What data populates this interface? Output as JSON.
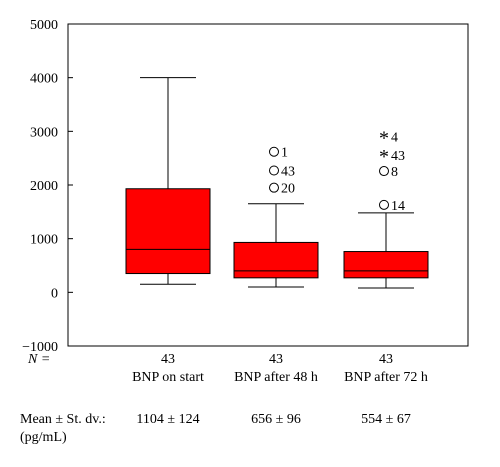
{
  "chart_data": {
    "type": "box",
    "ylim": [
      -1000,
      5000
    ],
    "yticks": [
      -1000,
      0,
      1000,
      2000,
      3000,
      4000,
      5000
    ],
    "box_color": "#ff0000",
    "n_label": "N =",
    "categories": [
      "BNP on start",
      "BNP after 48 h",
      "BNP after 72 h"
    ],
    "series": [
      {
        "label": "BNP on start",
        "n": "43",
        "min": 150,
        "q1": 350,
        "median": 800,
        "q3": 1930,
        "max": 4000,
        "outliers": [],
        "mean_sd": "1104 ± 124"
      },
      {
        "label": "BNP after 48 h",
        "n": "43",
        "min": 100,
        "q1": 270,
        "median": 400,
        "q3": 930,
        "max": 1650,
        "outliers": [
          {
            "value": 2620,
            "marker": "circle",
            "label": "1"
          },
          {
            "value": 2270,
            "marker": "circle",
            "label": "43"
          },
          {
            "value": 1950,
            "marker": "circle",
            "label": "20"
          }
        ],
        "mean_sd": "656 ± 96"
      },
      {
        "label": "BNP after 72 h",
        "n": "43",
        "min": 80,
        "q1": 270,
        "median": 400,
        "q3": 760,
        "max": 1480,
        "outliers": [
          {
            "value": 2900,
            "marker": "star",
            "label": "4"
          },
          {
            "value": 2560,
            "marker": "star",
            "label": "43"
          },
          {
            "value": 2260,
            "marker": "circle",
            "label": "8"
          },
          {
            "value": 1630,
            "marker": "circle",
            "label": "14"
          }
        ],
        "mean_sd": "554 ± 67"
      }
    ],
    "footer": {
      "mean_label": "Mean ± St. dv.:",
      "unit_label": "(pg/mL)"
    }
  }
}
